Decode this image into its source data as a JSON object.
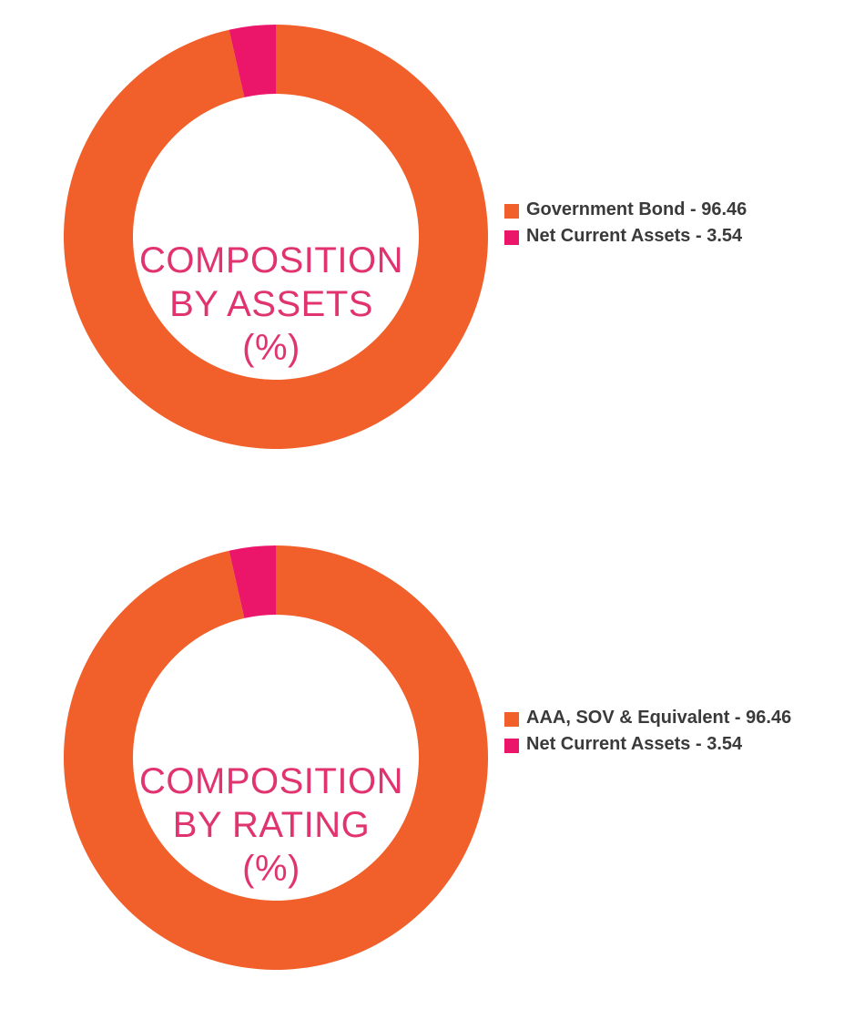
{
  "colors": {
    "slice_primary": "#F15F2A",
    "slice_secondary": "#EB1669",
    "title": "#E0336F"
  },
  "chart_data": [
    {
      "type": "donut",
      "center_title": [
        "COMPOSITION",
        "BY ASSETS",
        "(%)"
      ],
      "slices": [
        {
          "label": "Government Bond - 96.46",
          "value": 96.46
        },
        {
          "label": "Net Current Assets - 3.54",
          "value": 3.54
        }
      ],
      "legend_position": "right"
    },
    {
      "type": "donut",
      "center_title": [
        "COMPOSITION",
        "BY RATING",
        "(%)"
      ],
      "slices": [
        {
          "label": "AAA, SOV & Equivalent - 96.46",
          "value": 96.46
        },
        {
          "label": "Net Current Assets - 3.54",
          "value": 3.54
        }
      ],
      "legend_position": "right"
    }
  ]
}
